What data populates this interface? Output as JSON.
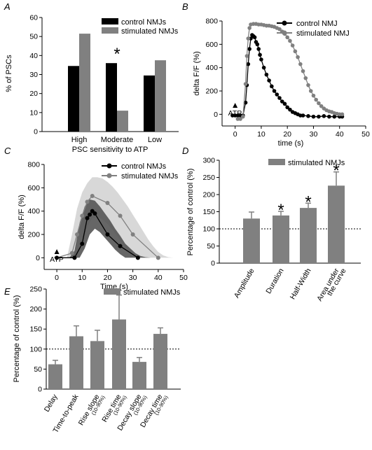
{
  "colors": {
    "control": "#000000",
    "stimulated": "#808080",
    "control_band": "#555555",
    "stimulated_band": "#d4d4d4",
    "axis": "#000000"
  },
  "chart_data": [
    {
      "panel": "A",
      "type": "bar",
      "ylabel": "% of PSCs",
      "xlabel": "PSC sensitivity to ATP",
      "ylim": [
        0,
        60
      ],
      "yticks": [
        0,
        10,
        20,
        30,
        40,
        50,
        60
      ],
      "categories": [
        "High",
        "Moderate",
        "Low"
      ],
      "series": [
        {
          "name": "control NMJs",
          "values": [
            34.5,
            36,
            29.5
          ]
        },
        {
          "name": "stimulated NMJs",
          "values": [
            51.5,
            11,
            37.5
          ]
        }
      ],
      "annotations": [
        {
          "text": "*",
          "category": "Moderate"
        }
      ],
      "legend": "top-right"
    },
    {
      "panel": "B",
      "type": "scatter",
      "ylabel": "delta F/F (%)",
      "xlabel": "time (s)",
      "xlim": [
        -5,
        50
      ],
      "ylim": [
        -100,
        800
      ],
      "xticks": [
        0,
        10,
        20,
        30,
        40,
        50
      ],
      "yticks": [
        0,
        200,
        400,
        600,
        800
      ],
      "arrow_label": "ATP",
      "series": [
        {
          "name": "control NMJ",
          "x": [
            -1,
            0,
            1,
            2,
            3,
            4,
            4.5,
            5,
            5.5,
            6,
            6.5,
            7,
            7.5,
            8,
            8.5,
            9,
            9.5,
            10,
            11,
            12,
            13,
            14,
            15,
            16,
            17,
            18,
            19,
            20,
            21,
            22,
            23,
            24,
            25,
            26,
            28,
            30,
            32,
            34,
            36,
            38,
            40,
            41
          ],
          "y": [
            -10,
            -10,
            -10,
            -10,
            -10,
            100,
            250,
            430,
            560,
            650,
            680,
            670,
            660,
            620,
            600,
            560,
            510,
            470,
            400,
            340,
            290,
            240,
            200,
            170,
            140,
            110,
            90,
            60,
            40,
            20,
            10,
            0,
            -10,
            -10,
            -15,
            -20,
            -20,
            -15,
            -20,
            -20,
            -20,
            -20
          ]
        },
        {
          "name": "stimulated NMJ",
          "x": [
            1,
            2,
            3,
            4,
            4.5,
            5,
            5.5,
            6,
            7,
            8,
            9,
            10,
            11,
            12,
            13,
            14,
            15,
            16,
            17,
            18,
            19,
            20,
            21,
            22,
            23,
            24,
            25,
            26,
            27,
            28,
            29,
            30,
            31,
            32,
            33,
            34,
            35,
            36,
            37,
            38,
            39,
            40,
            41
          ],
          "y": [
            -40,
            -40,
            -20,
            260,
            500,
            650,
            740,
            770,
            775,
            775,
            770,
            770,
            765,
            760,
            760,
            755,
            750,
            740,
            730,
            710,
            690,
            660,
            630,
            590,
            540,
            490,
            430,
            370,
            310,
            250,
            200,
            160,
            125,
            95,
            70,
            50,
            35,
            25,
            20,
            10,
            5,
            0,
            0
          ]
        }
      ],
      "legend": "top-right"
    },
    {
      "panel": "C",
      "type": "line",
      "ylabel": "delta F/F (%)",
      "xlabel": "Time (s)",
      "xlim": [
        -5,
        50
      ],
      "ylim": [
        -100,
        800
      ],
      "xticks": [
        0,
        10,
        20,
        30,
        40,
        50
      ],
      "yticks": [
        0,
        200,
        400,
        600,
        800
      ],
      "arrow_label": "ATP",
      "series": [
        {
          "name": "control NMJs",
          "x": [
            0,
            7,
            10,
            12,
            13,
            14,
            15,
            20,
            25,
            32
          ],
          "y": [
            0,
            0,
            120,
            340,
            370,
            400,
            380,
            200,
            100,
            0
          ],
          "band_x": [
            5,
            7,
            9,
            11,
            13,
            15,
            17,
            19,
            21,
            23,
            25,
            27,
            29,
            31,
            33,
            35,
            37
          ],
          "band_upper": [
            0,
            60,
            300,
            440,
            500,
            490,
            440,
            380,
            320,
            250,
            190,
            120,
            80,
            40,
            15,
            5,
            0
          ],
          "band_lower": [
            0,
            0,
            0,
            80,
            200,
            250,
            220,
            170,
            120,
            70,
            30,
            0,
            0,
            0,
            0,
            0,
            0
          ]
        },
        {
          "name": "stimulated NMJs",
          "x": [
            0,
            6,
            8,
            10,
            12,
            14,
            20,
            25,
            30,
            40
          ],
          "y": [
            0,
            40,
            200,
            360,
            480,
            530,
            470,
            360,
            200,
            0
          ],
          "band_x": [
            4,
            6,
            8,
            10,
            12,
            14,
            16,
            18,
            20,
            22,
            24,
            26,
            28,
            30,
            32,
            34,
            36,
            38,
            40,
            42,
            44,
            46
          ],
          "band_upper": [
            0,
            200,
            420,
            560,
            640,
            690,
            690,
            680,
            650,
            610,
            560,
            500,
            440,
            370,
            300,
            230,
            160,
            100,
            50,
            20,
            5,
            0
          ],
          "band_lower": [
            0,
            0,
            0,
            120,
            260,
            340,
            350,
            330,
            290,
            240,
            180,
            120,
            70,
            30,
            0,
            0,
            0,
            0,
            0,
            0,
            0,
            0
          ]
        }
      ],
      "legend": "top-right"
    },
    {
      "panel": "D",
      "type": "bar",
      "ylabel": "Percentage of control (%)",
      "ylim": [
        0,
        300
      ],
      "yticks": [
        0,
        50,
        100,
        150,
        200,
        250,
        300
      ],
      "reference_line": 100,
      "categories": [
        "Amplitude",
        "Duration",
        "Half-Width",
        "Area under the curve"
      ],
      "series": [
        {
          "name": "stimulated NMJs",
          "values": [
            130,
            139,
            161,
            226
          ],
          "errors": [
            19,
            12,
            14,
            40
          ],
          "significant": [
            false,
            true,
            true,
            true
          ]
        }
      ],
      "legend": "top-right"
    },
    {
      "panel": "E",
      "type": "bar",
      "ylabel": "Percentage of control (%)",
      "ylim": [
        0,
        250
      ],
      "yticks": [
        0,
        50,
        100,
        150,
        200,
        250
      ],
      "reference_line": 100,
      "categories": [
        "Delay",
        "Time-to-peak",
        "Rise slope",
        "Rise time",
        "Decay slope",
        "Decay time"
      ],
      "category_sublabels": [
        "",
        "",
        "(10-90%)",
        "(10-90%)",
        "(10-90%)",
        "(10-90%)"
      ],
      "series": [
        {
          "name": "stimulated NMJs",
          "values": [
            62,
            132,
            120,
            174,
            68,
            138
          ],
          "errors": [
            10,
            26,
            27,
            61,
            11,
            15
          ]
        }
      ],
      "legend": "top-right"
    }
  ]
}
